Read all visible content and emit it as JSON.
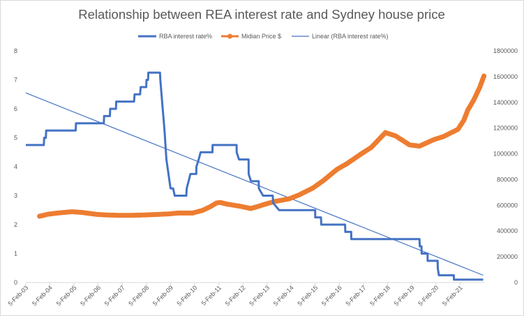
{
  "chart_data": {
    "type": "line",
    "title": "Relationship between REA interest rate and Sydney house price",
    "legend_position": "top",
    "grid": false,
    "x_axis": {
      "type": "date",
      "tick_labels": [
        "5-Feb-03",
        "5-Feb-04",
        "5-Feb-05",
        "5-Feb-06",
        "5-Feb-07",
        "5-Feb-08",
        "5-Feb-09",
        "5-Feb-10",
        "5-Feb-11",
        "5-Feb-12",
        "5-Feb-13",
        "5-Feb-14",
        "5-Feb-15",
        "5-Feb-16",
        "5-Feb-17",
        "5-Feb-18",
        "5-Feb-19",
        "5-Feb-20",
        "5-Feb-21"
      ],
      "range": [
        "2003-02-05",
        "2022-02-05"
      ]
    },
    "y_axis_left": {
      "range": [
        0,
        8
      ],
      "tick_labels": [
        "0",
        "1",
        "2",
        "3",
        "4",
        "5",
        "6",
        "7",
        "8"
      ]
    },
    "y_axis_right": {
      "range": [
        0,
        1800000
      ],
      "tick_labels": [
        "0",
        "200000",
        "400000",
        "600000",
        "800000",
        "1000000",
        "1200000",
        "1400000",
        "1600000",
        "1800000"
      ]
    },
    "series": [
      {
        "name": "RBA interest rate%",
        "axis": "left",
        "color": "#4472c4",
        "style": "line",
        "points": [
          [
            "2003-02-05",
            4.75
          ],
          [
            "2003-11-05",
            4.75
          ],
          [
            "2003-11-10",
            5.0
          ],
          [
            "2003-12-05",
            5.0
          ],
          [
            "2003-12-10",
            5.25
          ],
          [
            "2005-03-01",
            5.25
          ],
          [
            "2005-03-05",
            5.5
          ],
          [
            "2006-05-01",
            5.5
          ],
          [
            "2006-05-05",
            5.75
          ],
          [
            "2006-08-01",
            5.75
          ],
          [
            "2006-08-05",
            6.0
          ],
          [
            "2006-11-01",
            6.0
          ],
          [
            "2006-11-05",
            6.25
          ],
          [
            "2007-08-01",
            6.25
          ],
          [
            "2007-08-10",
            6.5
          ],
          [
            "2007-11-01",
            6.5
          ],
          [
            "2007-11-10",
            6.75
          ],
          [
            "2008-02-01",
            6.75
          ],
          [
            "2008-02-06",
            7.0
          ],
          [
            "2008-03-01",
            7.0
          ],
          [
            "2008-03-05",
            7.25
          ],
          [
            "2008-08-28",
            7.25
          ],
          [
            "2008-09-03",
            7.0
          ],
          [
            "2008-10-08",
            6.0
          ],
          [
            "2008-11-05",
            5.25
          ],
          [
            "2008-12-03",
            4.25
          ],
          [
            "2009-02-04",
            3.25
          ],
          [
            "2009-03-15",
            3.25
          ],
          [
            "2009-04-08",
            3.0
          ],
          [
            "2009-10-01",
            3.0
          ],
          [
            "2009-10-07",
            3.25
          ],
          [
            "2009-11-04",
            3.5
          ],
          [
            "2009-12-02",
            3.75
          ],
          [
            "2010-03-01",
            3.75
          ],
          [
            "2010-03-03",
            4.0
          ],
          [
            "2010-04-07",
            4.25
          ],
          [
            "2010-05-05",
            4.5
          ],
          [
            "2010-11-01",
            4.5
          ],
          [
            "2010-11-03",
            4.75
          ],
          [
            "2011-11-01",
            4.75
          ],
          [
            "2011-11-02",
            4.5
          ],
          [
            "2011-12-07",
            4.25
          ],
          [
            "2012-05-01",
            4.25
          ],
          [
            "2012-05-02",
            3.75
          ],
          [
            "2012-06-06",
            3.5
          ],
          [
            "2012-10-01",
            3.5
          ],
          [
            "2012-10-03",
            3.25
          ],
          [
            "2012-12-05",
            3.0
          ],
          [
            "2013-05-01",
            3.0
          ],
          [
            "2013-05-08",
            2.75
          ],
          [
            "2013-08-07",
            2.5
          ],
          [
            "2015-02-03",
            2.5
          ],
          [
            "2015-02-04",
            2.25
          ],
          [
            "2015-05-01",
            2.25
          ],
          [
            "2015-05-06",
            2.0
          ],
          [
            "2016-05-01",
            2.0
          ],
          [
            "2016-05-04",
            1.75
          ],
          [
            "2016-08-01",
            1.75
          ],
          [
            "2016-08-03",
            1.5
          ],
          [
            "2019-06-01",
            1.5
          ],
          [
            "2019-06-05",
            1.25
          ],
          [
            "2019-07-01",
            1.25
          ],
          [
            "2019-07-03",
            1.0
          ],
          [
            "2019-10-01",
            1.0
          ],
          [
            "2019-10-02",
            0.75
          ],
          [
            "2020-03-01",
            0.75
          ],
          [
            "2020-03-04",
            0.5
          ],
          [
            "2020-03-20",
            0.25
          ],
          [
            "2020-11-01",
            0.25
          ],
          [
            "2020-11-04",
            0.1
          ],
          [
            "2022-01-20",
            0.1
          ]
        ]
      },
      {
        "name": "Midian Price $",
        "axis": "right",
        "color": "#ed7d31",
        "style": "line-markers",
        "points": [
          [
            "2003-09-01",
            515000
          ],
          [
            "2004-01-01",
            530000
          ],
          [
            "2004-06-01",
            540000
          ],
          [
            "2005-01-01",
            550000
          ],
          [
            "2005-06-01",
            545000
          ],
          [
            "2006-01-01",
            530000
          ],
          [
            "2006-06-01",
            525000
          ],
          [
            "2007-01-01",
            522000
          ],
          [
            "2007-06-01",
            522000
          ],
          [
            "2008-01-01",
            525000
          ],
          [
            "2008-06-01",
            528000
          ],
          [
            "2009-01-01",
            533000
          ],
          [
            "2009-06-01",
            540000
          ],
          [
            "2010-01-01",
            540000
          ],
          [
            "2010-06-01",
            560000
          ],
          [
            "2010-10-01",
            590000
          ],
          [
            "2011-01-01",
            618000
          ],
          [
            "2011-03-01",
            622000
          ],
          [
            "2011-06-01",
            610000
          ],
          [
            "2012-01-01",
            592000
          ],
          [
            "2012-06-01",
            575000
          ],
          [
            "2012-09-01",
            588000
          ],
          [
            "2013-01-01",
            608000
          ],
          [
            "2013-06-01",
            630000
          ],
          [
            "2014-01-01",
            650000
          ],
          [
            "2014-06-01",
            680000
          ],
          [
            "2015-01-01",
            735000
          ],
          [
            "2015-06-01",
            790000
          ],
          [
            "2016-01-01",
            880000
          ],
          [
            "2016-06-01",
            925000
          ],
          [
            "2017-01-01",
            1000000
          ],
          [
            "2017-06-01",
            1050000
          ],
          [
            "2018-01-01",
            1165000
          ],
          [
            "2018-06-01",
            1140000
          ],
          [
            "2019-01-01",
            1070000
          ],
          [
            "2019-06-01",
            1060000
          ],
          [
            "2020-01-01",
            1110000
          ],
          [
            "2020-06-01",
            1135000
          ],
          [
            "2021-01-01",
            1190000
          ],
          [
            "2021-04-01",
            1260000
          ],
          [
            "2021-06-01",
            1340000
          ],
          [
            "2021-09-01",
            1420000
          ],
          [
            "2021-12-01",
            1520000
          ],
          [
            "2022-02-01",
            1605000
          ]
        ]
      },
      {
        "name": "Linear (RBA interest rate%)",
        "axis": "left",
        "color": "#4472c4",
        "style": "trendline",
        "points": [
          [
            "2003-02-05",
            6.55
          ],
          [
            "2022-01-20",
            0.25
          ]
        ]
      }
    ]
  }
}
